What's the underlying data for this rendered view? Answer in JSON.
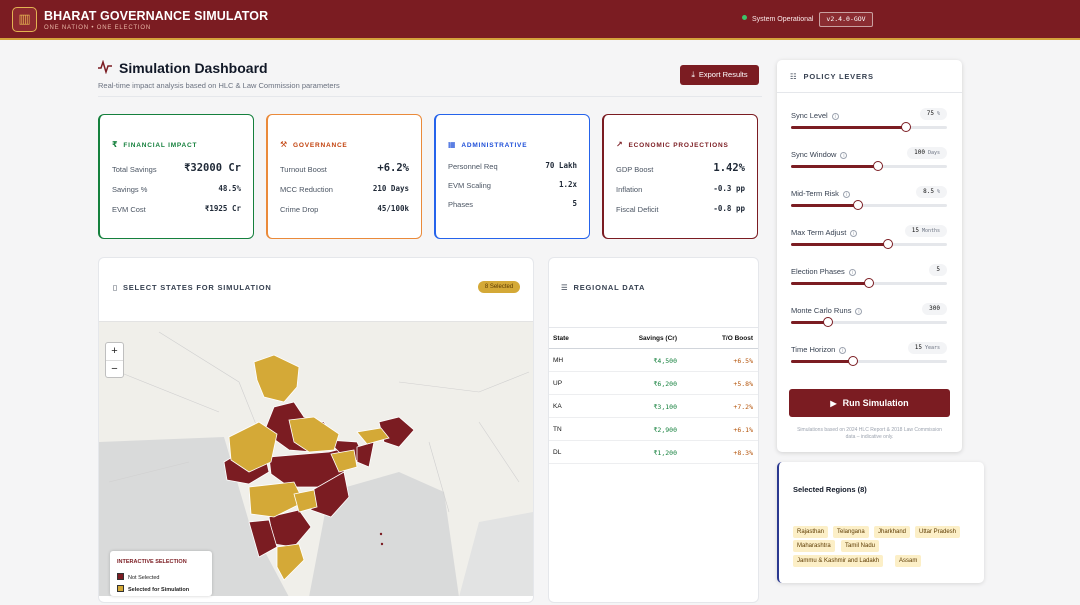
{
  "header": {
    "title": "BHARAT GOVERNANCE SIMULATOR",
    "subtitle": "ONE NATION • ONE ELECTION",
    "status": "System Operational",
    "version": "v2.4.0-GOV"
  },
  "page": {
    "title": "Simulation Dashboard",
    "subtitle": "Real-time impact analysis based on HLC & Law Commission parameters",
    "export_label": "Export Results"
  },
  "cards": {
    "financial": {
      "title": "FINANCIAL IMPACT",
      "color": "#15803d",
      "rows": [
        {
          "label": "Total Savings",
          "value": "₹32000 Cr"
        },
        {
          "label": "Savings %",
          "value": "48.5%"
        },
        {
          "label": "EVM Cost",
          "value": "₹1925 Cr"
        }
      ]
    },
    "governance": {
      "title": "GOVERNANCE",
      "color": "#c2410c",
      "rows": [
        {
          "label": "Turnout Boost",
          "value": "+6.2%"
        },
        {
          "label": "MCC Reduction",
          "value": "210 Days"
        },
        {
          "label": "Crime Drop",
          "value": "45/100k"
        }
      ]
    },
    "administrative": {
      "title": "ADMINISTRATIVE",
      "color": "#1d4ed8",
      "rows": [
        {
          "label": "Personnel Req",
          "value": "70 Lakh"
        },
        {
          "label": "EVM Scaling",
          "value": "1.2x"
        },
        {
          "label": "Phases",
          "value": "5"
        }
      ]
    },
    "economic": {
      "title": "ECONOMIC PROJECTIONS",
      "color": "#7b1c22",
      "rows": [
        {
          "label": "GDP Boost",
          "value": "1.42%"
        },
        {
          "label": "Inflation",
          "value": "-0.3 pp"
        },
        {
          "label": "Fiscal Deficit",
          "value": "-0.8 pp"
        }
      ]
    }
  },
  "states_panel": {
    "title": "SELECT STATES FOR SIMULATION",
    "badge": "8 Selected",
    "zoom_in": "+",
    "zoom_out": "−",
    "legend": {
      "title": "INTERACTIVE SELECTION",
      "not_selected": "Not Selected",
      "selected": "Selected for Simulation",
      "not_selected_color": "#7b1c22",
      "selected_color": "#d4a937"
    }
  },
  "regional": {
    "title": "REGIONAL DATA",
    "columns": [
      "State",
      "Savings (Cr)",
      "T/O Boost"
    ],
    "rows": [
      {
        "state": "MH",
        "savings": "₹4,500",
        "boost": "+6.5%"
      },
      {
        "state": "UP",
        "savings": "₹6,200",
        "boost": "+5.8%"
      },
      {
        "state": "KA",
        "savings": "₹3,100",
        "boost": "+7.2%"
      },
      {
        "state": "TN",
        "savings": "₹2,900",
        "boost": "+6.1%"
      },
      {
        "state": "DL",
        "savings": "₹1,200",
        "boost": "+8.3%"
      }
    ]
  },
  "levers": {
    "title": "POLICY LEVERS",
    "items": [
      {
        "name": "Sync Level",
        "value": "75",
        "unit": "%",
        "level": 0.74
      },
      {
        "name": "Sync Window",
        "value": "100",
        "unit": "Days",
        "level": 0.56
      },
      {
        "name": "Mid-Term Risk",
        "value": "8.5",
        "unit": "%",
        "level": 0.43
      },
      {
        "name": "Max Term Adjust",
        "value": "15",
        "unit": "Months",
        "level": 0.62
      },
      {
        "name": "Election Phases",
        "value": "5",
        "unit": "",
        "level": 0.5
      },
      {
        "name": "Monte Carlo Runs",
        "value": "300",
        "unit": "",
        "level": 0.24
      },
      {
        "name": "Time Horizon",
        "value": "15",
        "unit": "Years",
        "level": 0.4
      }
    ],
    "run_label": "Run Simulation",
    "note": "Simulations based on 2024 HLC Report & 2018 Law Commission data – indicative only."
  },
  "selected_regions": {
    "title": "Selected Regions (8)",
    "chips": [
      "Rajasthan",
      "Telangana",
      "Jharkhand",
      "Uttar Pradesh",
      "Maharashtra",
      "Tamil Nadu",
      "Jammu & Kashmir and Ladakh",
      "Assam"
    ]
  }
}
